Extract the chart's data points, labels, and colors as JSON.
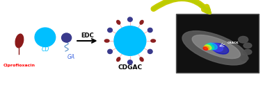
{
  "bg_color": "#ffffff",
  "ciprofloxacin_color": "#8B1A1A",
  "cd_color": "#00BFFF",
  "ga_color": "#3A3A8C",
  "edc_label": "EDC",
  "cdgac_label": "CDGAC",
  "cd_label": "CD",
  "ga_label": "GA",
  "cipro_label": "Ciprofloxacin",
  "cipro_label_color": "#FF0000",
  "ga_label_color": "#4169E1",
  "nanoparticle_color": "#00BFFF",
  "small_blue_color": "#3A3A8C",
  "small_red_color": "#8B2020",
  "line_color": "#6699CC",
  "curved_arrow_color_outer": "#CCCC00",
  "curved_arrow_color_inner": "#BBCC00",
  "crack_label": "CRACK"
}
